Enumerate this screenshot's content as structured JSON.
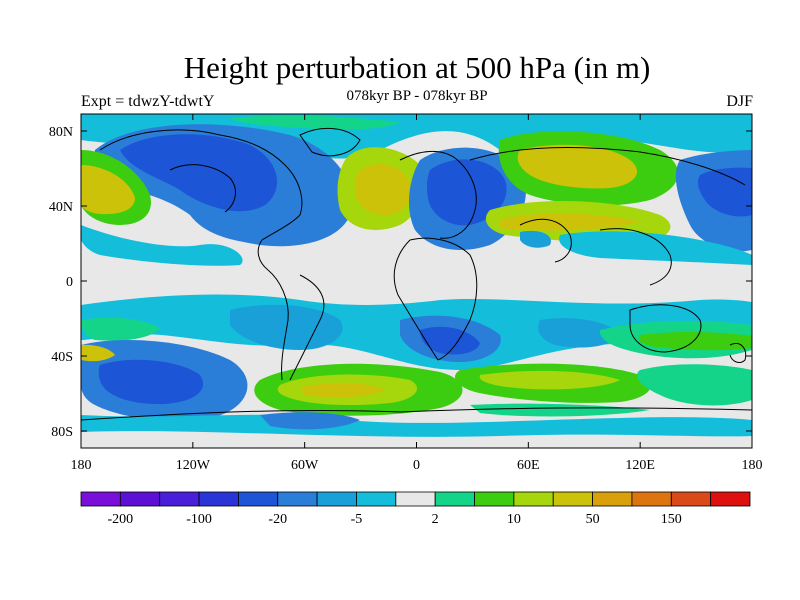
{
  "title": "Height perturbation at 500 hPa (in m)",
  "subtitle": "078kyr BP - 078kyr BP",
  "left_label": "Expt = tdwzY-tdwtY",
  "right_label": "DJF",
  "axes": {
    "x_ticks": [
      "180",
      "120W",
      "60W",
      "0",
      "60E",
      "120E",
      "180"
    ],
    "y_ticks": [
      "80N",
      "40N",
      "0",
      "40S",
      "80S"
    ]
  },
  "colorbar": {
    "colors": [
      "#7a0fd9",
      "#5c10d6",
      "#4a1fd9",
      "#2a35d8",
      "#1c55d6",
      "#2a7ed8",
      "#1aa0d8",
      "#14bedb",
      "#e8e8e8",
      "#14d48a",
      "#3dcd10",
      "#a6d60c",
      "#ccc20a",
      "#d9a00c",
      "#dc7410",
      "#da4a18",
      "#dd0f0f"
    ],
    "labels": [
      "-200",
      "-100",
      "-20",
      "-5",
      "2",
      "10",
      "50",
      "150"
    ]
  },
  "palette": {
    "background": "#e8e8e8",
    "deep_blue": "#1c55d6",
    "mid_blue": "#2a7ed8",
    "light_blue": "#1aa0d8",
    "cyan": "#14bedb",
    "teal_green": "#14d48a",
    "green": "#3dcd10",
    "yellow_green": "#a6d60c",
    "yellow": "#ccc20a"
  }
}
